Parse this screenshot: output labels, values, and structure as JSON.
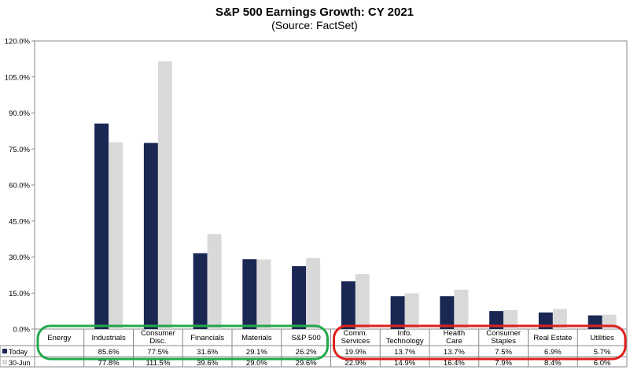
{
  "chart_data": {
    "type": "bar",
    "title": "S&P 500 Earnings Growth: CY 2021",
    "subtitle": "(Source: FactSet)",
    "ylim": [
      0,
      120
    ],
    "yticks": [
      0,
      15,
      30,
      45,
      60,
      75,
      90,
      105,
      120
    ],
    "ytick_labels": [
      "0.0%",
      "15.0%",
      "30.0%",
      "45.0%",
      "60.0%",
      "75.0%",
      "90.0%",
      "105.0%",
      "120.0%"
    ],
    "categories": [
      [
        "Energy"
      ],
      [
        "Industrials"
      ],
      [
        "Consumer",
        "Disc."
      ],
      [
        "Financials"
      ],
      [
        "Materials"
      ],
      [
        "S&P 500"
      ],
      [
        "Comm.",
        "Services"
      ],
      [
        "Info.",
        "Technology"
      ],
      [
        "Health",
        "Care"
      ],
      [
        "Consumer",
        "Staples"
      ],
      [
        "Real Estate"
      ],
      [
        "Utilities"
      ]
    ],
    "series": [
      {
        "name": "Today",
        "color": "#1a2753",
        "values": [
          null,
          85.6,
          77.5,
          31.6,
          29.1,
          26.2,
          19.9,
          13.7,
          13.7,
          7.5,
          6.9,
          5.7
        ],
        "labels": [
          "",
          "85.6%",
          "77.5%",
          "31.6%",
          "29.1%",
          "26.2%",
          "19.9%",
          "13.7%",
          "13.7%",
          "7.5%",
          "6.9%",
          "5.7%"
        ]
      },
      {
        "name": "30-Jun",
        "color": "#d9d9d9",
        "values": [
          null,
          77.8,
          111.5,
          39.6,
          29.0,
          29.6,
          22.9,
          14.9,
          16.4,
          7.9,
          8.4,
          6.0
        ],
        "labels": [
          "",
          "77.8%",
          "111.5%",
          "39.6%",
          "29.0%",
          "29.6%",
          "22.9%",
          "14.9%",
          "16.4%",
          "7.9%",
          "8.4%",
          "6.0%"
        ]
      }
    ],
    "grid": false,
    "highlight_groups": [
      {
        "color": "#22a94a",
        "from_index": 0,
        "to_index": 5
      },
      {
        "color": "#e0201b",
        "from_index": 6,
        "to_index": 11
      }
    ]
  }
}
